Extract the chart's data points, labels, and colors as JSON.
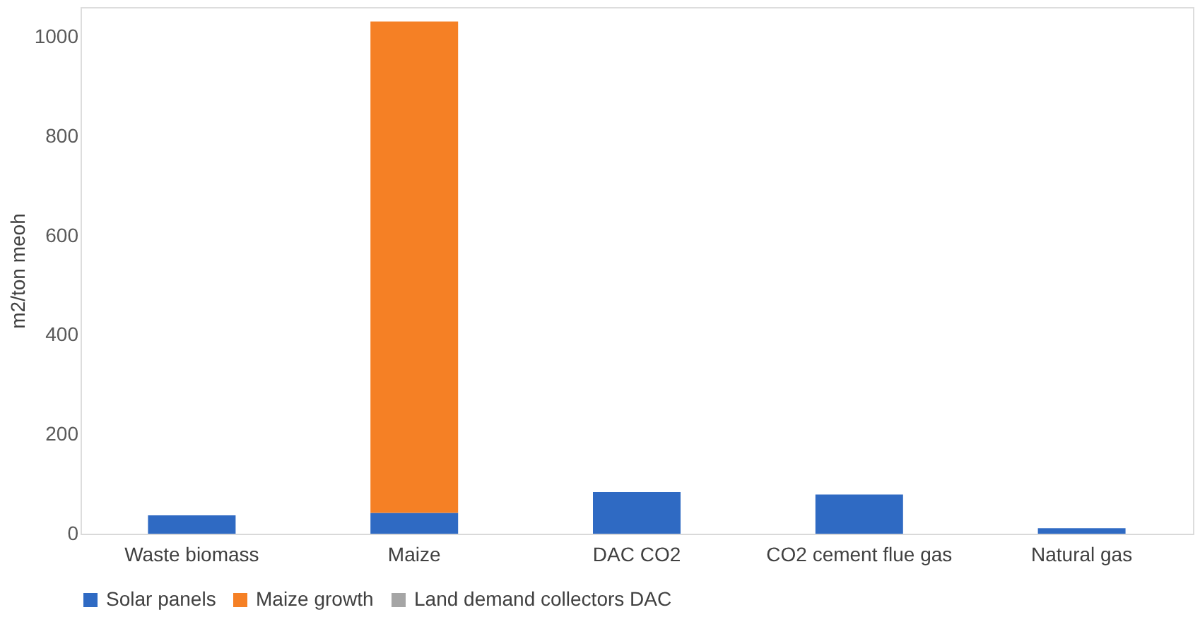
{
  "chart_data": {
    "type": "bar",
    "stacked": true,
    "ylabel": "m2/ton meoh",
    "categories": [
      "Waste biomass",
      "Maize",
      "DAC CO2",
      "CO2 cement flue gas",
      "Natural gas"
    ],
    "series": [
      {
        "name": "Solar panels",
        "color": "#2f6ac3",
        "values": [
          37,
          42,
          84,
          79,
          11
        ]
      },
      {
        "name": "Maize growth",
        "color": "#f58025",
        "values": [
          0,
          989,
          0,
          0,
          0
        ]
      },
      {
        "name": "Land demand collectors DAC",
        "color": "#a5a5a5",
        "values": [
          0,
          0,
          0,
          0,
          0
        ]
      }
    ],
    "ylim": [
      0,
      1060
    ],
    "yticks": [
      0,
      200,
      400,
      600,
      800,
      1000
    ],
    "grid": false,
    "legend": "bottom"
  }
}
